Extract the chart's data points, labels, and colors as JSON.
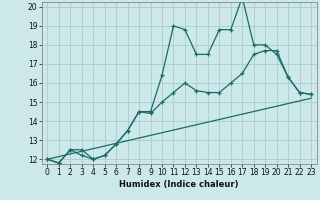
{
  "xlabel": "Humidex (Indice chaleur)",
  "ylabel": "",
  "xlim": [
    -0.5,
    23.5
  ],
  "ylim": [
    11.75,
    20.25
  ],
  "xticks": [
    0,
    1,
    2,
    3,
    4,
    5,
    6,
    7,
    8,
    9,
    10,
    11,
    12,
    13,
    14,
    15,
    16,
    17,
    18,
    19,
    20,
    21,
    22,
    23
  ],
  "yticks": [
    12,
    13,
    14,
    15,
    16,
    17,
    18,
    19,
    20
  ],
  "bg_color": "#cce8e8",
  "grid_color": "#aacccc",
  "line_color": "#1a6b6b",
  "line1_x": [
    0,
    1,
    2,
    3,
    4,
    5,
    6,
    7,
    8,
    9,
    10,
    11,
    12,
    13,
    14,
    15,
    16,
    17,
    18,
    19,
    20,
    21,
    22,
    23
  ],
  "line1_y": [
    12.0,
    11.8,
    12.5,
    12.2,
    12.0,
    12.2,
    12.8,
    13.5,
    14.5,
    14.5,
    16.4,
    19.0,
    18.8,
    17.5,
    17.5,
    18.8,
    18.8,
    20.5,
    18.0,
    18.0,
    17.5,
    16.3,
    15.5,
    15.4
  ],
  "line2_x": [
    0,
    1,
    2,
    3,
    4,
    5,
    6,
    7,
    8,
    9,
    10,
    11,
    12,
    13,
    14,
    15,
    16,
    17,
    18,
    19,
    20,
    21,
    22,
    23
  ],
  "line2_y": [
    12.0,
    11.8,
    12.5,
    12.5,
    12.0,
    12.2,
    12.8,
    13.5,
    14.5,
    14.4,
    15.0,
    15.5,
    16.0,
    15.6,
    15.5,
    15.5,
    16.0,
    16.5,
    17.5,
    17.7,
    17.7,
    16.3,
    15.5,
    15.4
  ],
  "line3_x": [
    0,
    23
  ],
  "line3_y": [
    12.0,
    15.2
  ]
}
